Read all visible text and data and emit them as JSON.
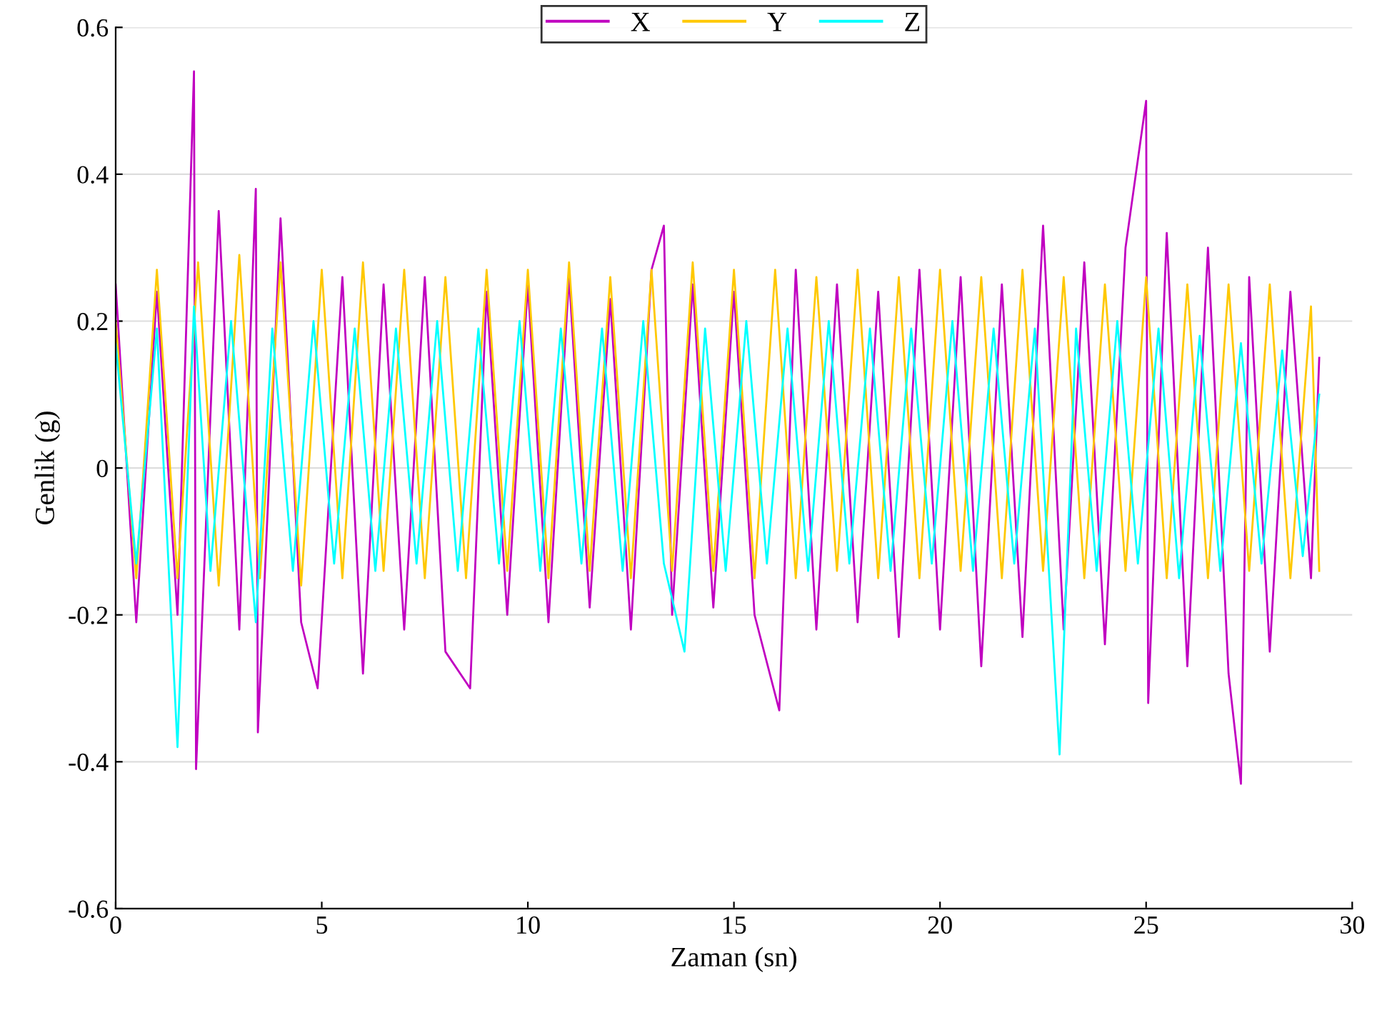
{
  "chart_data": {
    "type": "line",
    "xlabel": "Zaman (sn)",
    "ylabel": "Genlik (g)",
    "xlim": [
      0,
      30
    ],
    "xticks": [
      0,
      5,
      10,
      15,
      20,
      25,
      30
    ],
    "ylim": [
      -0.6,
      0.6
    ],
    "yticks": [
      -0.6,
      -0.4,
      -0.2,
      0,
      0.2,
      0.4,
      0.6
    ],
    "grid": "y",
    "legend": "top",
    "line_style": "solid",
    "marker": "none",
    "series": [
      {
        "name": "X",
        "color": "#c000c0",
        "x": [
          0,
          0.5,
          1,
          1.5,
          1.9,
          1.95,
          2.5,
          3,
          3.4,
          3.45,
          4,
          4.5,
          4.9,
          5.5,
          6,
          6.5,
          7,
          7.5,
          8,
          8.6,
          9,
          9.5,
          10,
          10.5,
          11,
          11.5,
          12,
          12.5,
          13,
          13.3,
          13.5,
          14,
          14.5,
          15,
          15.5,
          16.1,
          16.5,
          17,
          17.5,
          18,
          18.5,
          19,
          19.5,
          20,
          20.5,
          21,
          21.5,
          22,
          22.5,
          23,
          23.5,
          24,
          24.5,
          25,
          25.05,
          25.5,
          26,
          26.5,
          27,
          27.3,
          27.5,
          28,
          28.5,
          29,
          29.2
        ],
        "values": [
          0.25,
          -0.21,
          0.24,
          -0.2,
          0.54,
          -0.41,
          0.35,
          -0.22,
          0.38,
          -0.36,
          0.34,
          -0.21,
          -0.3,
          0.26,
          -0.28,
          0.25,
          -0.22,
          0.26,
          -0.25,
          -0.3,
          0.24,
          -0.2,
          0.25,
          -0.21,
          0.26,
          -0.19,
          0.23,
          -0.22,
          0.27,
          0.33,
          -0.2,
          0.25,
          -0.19,
          0.24,
          -0.2,
          -0.33,
          0.27,
          -0.22,
          0.25,
          -0.21,
          0.24,
          -0.23,
          0.27,
          -0.22,
          0.26,
          -0.27,
          0.25,
          -0.23,
          0.33,
          -0.22,
          0.28,
          -0.24,
          0.3,
          0.5,
          -0.32,
          0.32,
          -0.27,
          0.3,
          -0.28,
          -0.43,
          0.26,
          -0.25,
          0.24,
          -0.15,
          0.15
        ]
      },
      {
        "name": "Y",
        "color": "#ffc800",
        "x": [
          0,
          0.5,
          1,
          1.5,
          2,
          2.5,
          3,
          3.5,
          4,
          4.5,
          5,
          5.5,
          6,
          6.5,
          7,
          7.5,
          8,
          8.5,
          9,
          9.5,
          10,
          10.5,
          11,
          11.5,
          12,
          12.5,
          13,
          13.5,
          14,
          14.5,
          15,
          15.5,
          16,
          16.5,
          17,
          17.5,
          18,
          18.5,
          19,
          19.5,
          20,
          20.5,
          21,
          21.5,
          22,
          22.5,
          23,
          23.5,
          24,
          24.5,
          25,
          25.5,
          26,
          26.5,
          27,
          27.5,
          28,
          28.5,
          29,
          29.2
        ],
        "values": [
          0.2,
          -0.15,
          0.27,
          -0.15,
          0.28,
          -0.16,
          0.29,
          -0.15,
          0.28,
          -0.16,
          0.27,
          -0.15,
          0.28,
          -0.14,
          0.27,
          -0.15,
          0.26,
          -0.15,
          0.27,
          -0.14,
          0.27,
          -0.15,
          0.28,
          -0.14,
          0.26,
          -0.15,
          0.27,
          -0.14,
          0.28,
          -0.14,
          0.27,
          -0.15,
          0.27,
          -0.15,
          0.26,
          -0.14,
          0.27,
          -0.15,
          0.26,
          -0.15,
          0.27,
          -0.14,
          0.26,
          -0.15,
          0.27,
          -0.14,
          0.26,
          -0.15,
          0.25,
          -0.14,
          0.26,
          -0.15,
          0.25,
          -0.15,
          0.25,
          -0.14,
          0.25,
          -0.15,
          0.22,
          -0.14
        ]
      },
      {
        "name": "Z",
        "color": "#00ffff",
        "x": [
          0,
          0.5,
          1,
          1.5,
          1.9,
          2.3,
          2.8,
          3.4,
          3.8,
          4.3,
          4.8,
          5.3,
          5.8,
          6.3,
          6.8,
          7.3,
          7.8,
          8.3,
          8.8,
          9.3,
          9.8,
          10.3,
          10.8,
          11.3,
          11.8,
          12.3,
          12.8,
          13.3,
          13.8,
          14.3,
          14.8,
          15.3,
          15.8,
          16.3,
          16.8,
          17.3,
          17.8,
          18.3,
          18.8,
          19.3,
          19.8,
          20.3,
          20.8,
          21.3,
          21.8,
          22.3,
          22.9,
          23.3,
          23.8,
          24.3,
          24.8,
          25.3,
          25.8,
          26.3,
          26.8,
          27.3,
          27.8,
          28.3,
          28.8,
          29.2
        ],
        "values": [
          0.17,
          -0.13,
          0.19,
          -0.38,
          0.22,
          -0.14,
          0.2,
          -0.21,
          0.19,
          -0.14,
          0.2,
          -0.13,
          0.19,
          -0.14,
          0.19,
          -0.13,
          0.2,
          -0.14,
          0.19,
          -0.13,
          0.2,
          -0.14,
          0.19,
          -0.13,
          0.19,
          -0.14,
          0.2,
          -0.13,
          -0.25,
          0.19,
          -0.14,
          0.2,
          -0.13,
          0.19,
          -0.14,
          0.2,
          -0.13,
          0.19,
          -0.14,
          0.19,
          -0.13,
          0.2,
          -0.14,
          0.19,
          -0.13,
          0.19,
          -0.39,
          0.19,
          -0.14,
          0.2,
          -0.13,
          0.19,
          -0.15,
          0.18,
          -0.14,
          0.17,
          -0.13,
          0.16,
          -0.12,
          0.1
        ]
      }
    ]
  }
}
